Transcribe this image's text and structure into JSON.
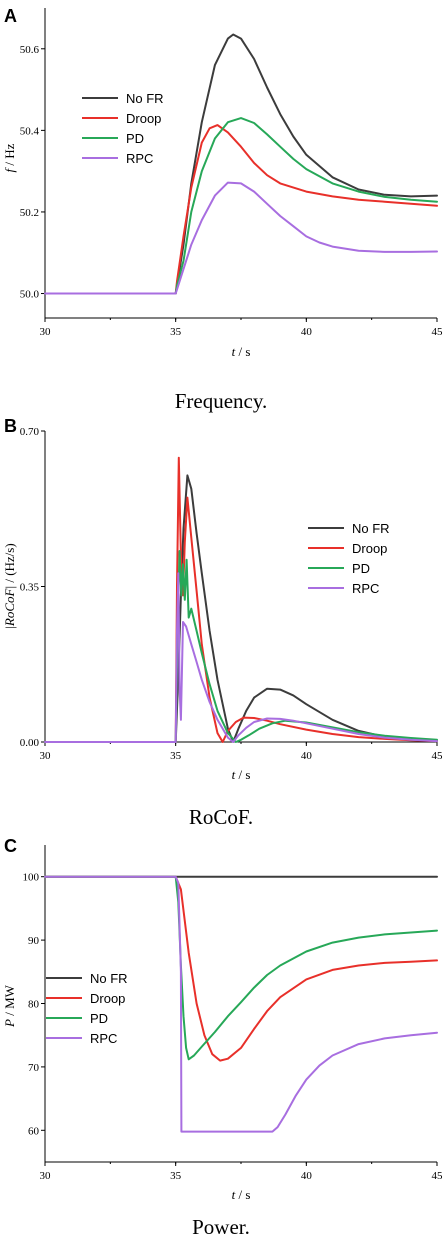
{
  "legend_colors": {
    "No FR": "#3c3c3c",
    "Droop": "#e8302a",
    "PD": "#27a858",
    "RPC": "#a86ee0"
  },
  "chart_data": [
    {
      "type": "line",
      "panel_label": "A",
      "caption": "Frequency.",
      "xlabel": "t",
      "xlabel_unit": " / s",
      "ylabel": "f",
      "ylabel_unit": " / Hz",
      "xlim": [
        30,
        45
      ],
      "ylim": [
        49.94,
        50.7
      ],
      "xticks": [
        30,
        35,
        40,
        45
      ],
      "xtick_labels": [
        "30",
        "35",
        "40",
        "45"
      ],
      "yticks": [
        50.0,
        50.2,
        50.4,
        50.6
      ],
      "ytick_labels": [
        "50.0",
        "50.2",
        "50.4",
        "50.6"
      ],
      "legend": "center-left",
      "grid": false,
      "series": [
        {
          "name": "No FR",
          "color": "#3c3c3c",
          "x": [
            30,
            35,
            35.05,
            35.3,
            35.6,
            36.0,
            36.5,
            37.0,
            37.2,
            37.5,
            38.0,
            38.5,
            39.0,
            39.5,
            40.0,
            41.0,
            42.0,
            43.0,
            44.0,
            45.0
          ],
          "y": [
            50.0,
            50.0,
            50.02,
            50.12,
            50.27,
            50.42,
            50.56,
            50.625,
            50.635,
            50.625,
            50.575,
            50.505,
            50.44,
            50.385,
            50.34,
            50.285,
            50.255,
            50.242,
            50.238,
            50.24
          ]
        },
        {
          "name": "Droop",
          "color": "#e8302a",
          "x": [
            30,
            35,
            35.05,
            35.3,
            35.6,
            36.0,
            36.3,
            36.6,
            37.0,
            37.5,
            38.0,
            38.5,
            39.0,
            40.0,
            41.0,
            42.0,
            43.0,
            44.0,
            45.0
          ],
          "y": [
            50.0,
            50.0,
            50.03,
            50.14,
            50.26,
            50.37,
            50.405,
            50.413,
            50.395,
            50.36,
            50.32,
            50.29,
            50.27,
            50.25,
            50.238,
            50.23,
            50.225,
            50.22,
            50.215
          ]
        },
        {
          "name": "PD",
          "color": "#27a858",
          "x": [
            30,
            35,
            35.05,
            35.3,
            35.6,
            36.0,
            36.5,
            37.0,
            37.5,
            38.0,
            38.5,
            39.0,
            39.5,
            40.0,
            41.0,
            42.0,
            43.0,
            44.0,
            45.0
          ],
          "y": [
            50.0,
            50.0,
            50.02,
            50.08,
            50.2,
            50.3,
            50.38,
            50.42,
            50.43,
            50.418,
            50.39,
            50.36,
            50.33,
            50.305,
            50.27,
            50.25,
            50.237,
            50.23,
            50.225
          ]
        },
        {
          "name": "RPC",
          "color": "#a86ee0",
          "x": [
            30,
            35,
            35.05,
            35.3,
            35.6,
            36.0,
            36.5,
            37.0,
            37.5,
            38.0,
            38.5,
            39.0,
            39.5,
            40.0,
            40.5,
            41.0,
            42.0,
            43.0,
            44.0,
            45.0
          ],
          "y": [
            50.0,
            50.0,
            50.01,
            50.06,
            50.12,
            50.18,
            50.24,
            50.272,
            50.27,
            50.25,
            50.22,
            50.19,
            50.165,
            50.14,
            50.125,
            50.115,
            50.105,
            50.102,
            50.102,
            50.103
          ]
        }
      ]
    },
    {
      "type": "line",
      "panel_label": "B",
      "caption": "RoCoF.",
      "xlabel": "t",
      "xlabel_unit": " / s",
      "ylabel": "RoCoF",
      "ylabel_prefix": "|",
      "ylabel_unit": "| / (Hz/s)",
      "xlim": [
        30,
        45
      ],
      "ylim": [
        0,
        0.7
      ],
      "xticks": [
        30,
        35,
        40,
        45
      ],
      "xtick_labels": [
        "30",
        "35",
        "40",
        "45"
      ],
      "yticks": [
        0.0,
        0.35,
        0.7
      ],
      "ytick_labels": [
        "0.00",
        "0.35",
        "0.70"
      ],
      "legend": "center-right",
      "grid": false,
      "series": [
        {
          "name": "No FR",
          "color": "#3c3c3c",
          "x": [
            30,
            35.0,
            35.1,
            35.2,
            35.3,
            35.45,
            35.6,
            35.8,
            36.0,
            36.3,
            36.6,
            37.0,
            37.2,
            37.4,
            37.7,
            38.0,
            38.5,
            39.0,
            39.5,
            40.0,
            41.0,
            42.0,
            43.0,
            44.0,
            45.0
          ],
          "y": [
            0,
            0,
            0.15,
            0.33,
            0.48,
            0.6,
            0.57,
            0.47,
            0.38,
            0.25,
            0.14,
            0.03,
            0.0,
            0.03,
            0.07,
            0.1,
            0.12,
            0.118,
            0.105,
            0.085,
            0.05,
            0.025,
            0.012,
            0.006,
            0.003
          ]
        },
        {
          "name": "Droop",
          "color": "#e8302a",
          "x": [
            30,
            35.0,
            35.05,
            35.12,
            35.2,
            35.28,
            35.35,
            35.45,
            35.6,
            35.8,
            36.0,
            36.3,
            36.6,
            36.8,
            37.0,
            37.3,
            37.6,
            38.0,
            38.5,
            39.0,
            40.0,
            41.0,
            42.0,
            43.0,
            44.0,
            45.0
          ],
          "y": [
            0,
            0,
            0.35,
            0.64,
            0.42,
            0.33,
            0.45,
            0.55,
            0.46,
            0.34,
            0.22,
            0.1,
            0.02,
            0.0,
            0.025,
            0.045,
            0.055,
            0.054,
            0.048,
            0.04,
            0.028,
            0.018,
            0.011,
            0.007,
            0.004,
            0.002
          ]
        },
        {
          "name": "PD",
          "color": "#27a858",
          "x": [
            30,
            35.0,
            35.07,
            35.15,
            35.22,
            35.28,
            35.35,
            35.42,
            35.5,
            35.6,
            35.8,
            36.0,
            36.3,
            36.6,
            37.0,
            37.3,
            37.5,
            37.8,
            38.2,
            38.7,
            39.2,
            40.0,
            41.0,
            42.0,
            43.0,
            44.0,
            45.0
          ],
          "y": [
            0,
            0,
            0.25,
            0.43,
            0.33,
            0.4,
            0.32,
            0.41,
            0.28,
            0.3,
            0.25,
            0.2,
            0.13,
            0.07,
            0.02,
            0.0,
            0.005,
            0.015,
            0.03,
            0.042,
            0.048,
            0.044,
            0.033,
            0.022,
            0.014,
            0.009,
            0.005
          ]
        },
        {
          "name": "RPC",
          "color": "#a86ee0",
          "x": [
            30,
            35.0,
            35.05,
            35.1,
            35.15,
            35.2,
            35.28,
            35.4,
            35.6,
            35.8,
            36.0,
            36.3,
            36.6,
            37.0,
            37.2,
            37.4,
            37.7,
            38.0,
            38.5,
            39.0,
            39.5,
            40.0,
            41.0,
            42.0,
            43.0,
            44.0,
            45.0
          ],
          "y": [
            0,
            0,
            0.25,
            0.38,
            0.12,
            0.05,
            0.27,
            0.26,
            0.22,
            0.18,
            0.14,
            0.09,
            0.05,
            0.01,
            0.0,
            0.015,
            0.032,
            0.045,
            0.053,
            0.052,
            0.048,
            0.042,
            0.03,
            0.018,
            0.01,
            0.005,
            0.002
          ]
        }
      ]
    },
    {
      "type": "line",
      "panel_label": "C",
      "caption": "Power.",
      "xlabel": "t",
      "xlabel_unit": " / s",
      "ylabel": "P",
      "ylabel_unit": " / MW",
      "xlim": [
        30,
        45
      ],
      "ylim": [
        55,
        105
      ],
      "xticks": [
        30,
        35,
        40,
        45
      ],
      "xtick_labels": [
        "30",
        "35",
        "40",
        "45"
      ],
      "yticks": [
        60,
        70,
        80,
        90,
        100
      ],
      "ytick_labels": [
        "60",
        "70",
        "80",
        "90",
        "100"
      ],
      "legend": "center-left",
      "grid": false,
      "series": [
        {
          "name": "No FR",
          "color": "#3c3c3c",
          "x": [
            30,
            45
          ],
          "y": [
            100,
            100
          ]
        },
        {
          "name": "Droop",
          "color": "#e8302a",
          "x": [
            30,
            35.0,
            35.2,
            35.5,
            35.8,
            36.1,
            36.4,
            36.7,
            37.0,
            37.5,
            38.0,
            38.5,
            39.0,
            40.0,
            41.0,
            42.0,
            43.0,
            44.0,
            45.0
          ],
          "y": [
            100,
            100,
            98,
            88,
            80,
            75,
            72,
            71,
            71.3,
            73,
            76,
            78.8,
            81,
            83.8,
            85.3,
            86,
            86.4,
            86.6,
            86.8
          ]
        },
        {
          "name": "PD",
          "color": "#27a858",
          "x": [
            30,
            35.0,
            35.1,
            35.2,
            35.3,
            35.4,
            35.5,
            35.7,
            36.0,
            36.5,
            37.0,
            37.5,
            38.0,
            38.5,
            39.0,
            40.0,
            41.0,
            42.0,
            43.0,
            44.0,
            45.0
          ],
          "y": [
            100,
            100,
            96,
            86,
            78,
            73,
            71.2,
            71.8,
            73.2,
            75.5,
            78,
            80.2,
            82.5,
            84.5,
            86,
            88.2,
            89.6,
            90.4,
            90.9,
            91.2,
            91.5
          ]
        },
        {
          "name": "RPC",
          "color": "#a86ee0",
          "x": [
            30,
            35.0,
            35.1,
            35.2,
            35.22,
            36.0,
            37.0,
            38.0,
            38.7,
            38.9,
            39.2,
            39.6,
            40.0,
            40.5,
            41.0,
            42.0,
            43.0,
            44.0,
            45.0
          ],
          "y": [
            100,
            100,
            99,
            85,
            59.8,
            59.8,
            59.8,
            59.8,
            59.8,
            60.5,
            62.5,
            65.5,
            68,
            70.2,
            71.8,
            73.6,
            74.5,
            75,
            75.4
          ]
        }
      ]
    }
  ]
}
